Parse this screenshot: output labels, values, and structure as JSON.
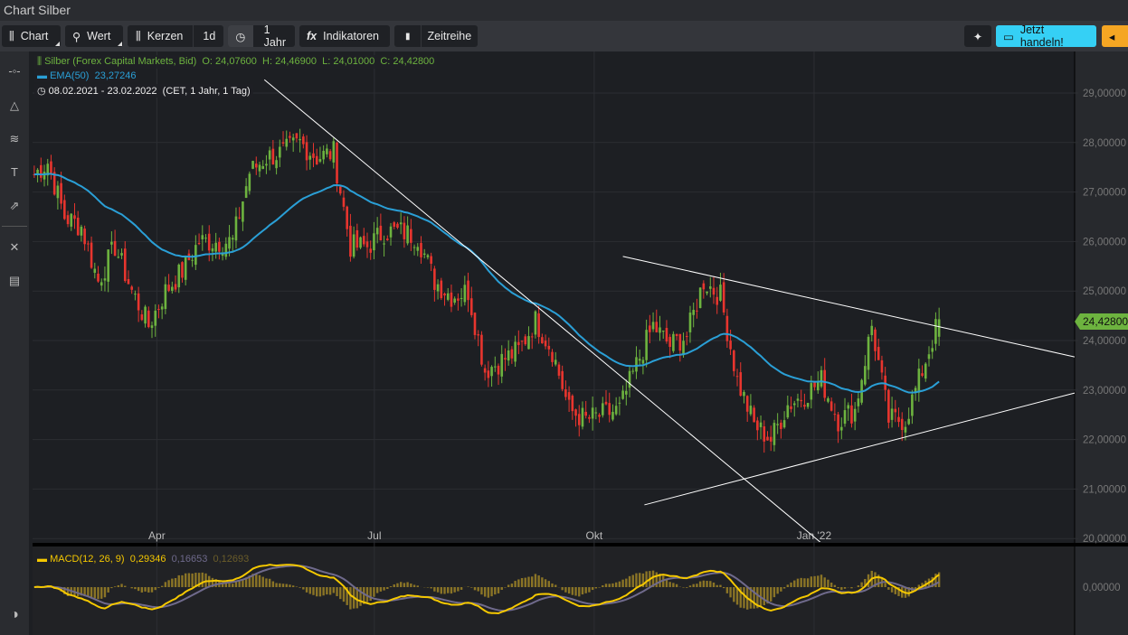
{
  "window": {
    "title": "Chart Silber"
  },
  "toolbar": {
    "chart": "Chart",
    "wert": "Wert",
    "kerzen": "Kerzen",
    "interval": "1d",
    "range": "1 Jahr",
    "indikatoren": "Indikatoren",
    "zeitreihe": "Zeitreihe",
    "trade": "Jetzt handeln!"
  },
  "icons": {
    "chart": "candlestick-icon",
    "wert": "search-icon",
    "range": "clock-icon",
    "indikatoren": "fx-icon",
    "zeitreihe": "bookmark-icon",
    "magic": "sparkle-icon",
    "trade": "money-icon",
    "collapse": "caret-left-icon"
  },
  "legend": {
    "instrument": "Silber (Forex Capital Markets, Bid)",
    "open": "O: 24,07600",
    "high": "H: 24,46900",
    "low": "L: 24,01000",
    "close": "C: 24,42800",
    "ema": "EMA(50)",
    "ema_value": "23,27246",
    "period": "08.02.2021 - 23.02.2022",
    "period_info": "(CET, 1 Jahr, 1 Tag)",
    "macd": "MACD(12, 26, 9)",
    "macd_value": "0,29346",
    "signal_value": "0,16653",
    "hist_value": "0,12693"
  },
  "price_badge": "24,42800",
  "colors": {
    "up": "#6db33f",
    "down": "#e8352e",
    "ema": "#2a9fd6",
    "macd": "#f5c800",
    "signal": "#6f6a8c",
    "hist": "#8a7426",
    "trade_button": "#35d0f5",
    "collapse_button": "#f5a623"
  },
  "chart_data": {
    "type": "candlestick",
    "start_date": "2021-02-08",
    "end_date": "2022-02-23",
    "y_ticks": [
      "29,00000",
      "28,00000",
      "27,00000",
      "26,00000",
      "25,00000",
      "24,00000",
      "23,00000",
      "22,00000",
      "21,00000",
      "20,00000"
    ],
    "ylim": [
      19.9,
      29.85
    ],
    "x_ticks": [
      {
        "label": "Apr",
        "date": "2021-04-01"
      },
      {
        "label": "Jul",
        "date": "2021-07-01"
      },
      {
        "label": "Okt",
        "date": "2021-10-01"
      },
      {
        "label": "Jan '22",
        "date": "2022-01-01"
      }
    ],
    "weekly_close": [
      27.3,
      27.6,
      26.5,
      26.3,
      25.2,
      25.9,
      25.0,
      24.3,
      25.0,
      25.4,
      26.0,
      26.0,
      26.0,
      27.4,
      27.7,
      27.8,
      28.0,
      27.7,
      27.8,
      25.9,
      25.9,
      26.2,
      26.2,
      26.1,
      25.2,
      24.9,
      25.0,
      23.4,
      23.6,
      23.8,
      24.4,
      23.8,
      22.6,
      22.4,
      22.5,
      22.6,
      23.5,
      24.3,
      23.9,
      24.1,
      25.2,
      24.9,
      23.2,
      22.3,
      22.0,
      22.7,
      22.9,
      23.2,
      22.4,
      22.6,
      24.3,
      22.4,
      22.4,
      23.4,
      24.43
    ],
    "trendlines": [
      {
        "from": [
          "2021-05-16",
          29.27
        ],
        "to": [
          "2022-01-05",
          19.87
        ]
      },
      {
        "from": [
          "2021-10-13",
          25.7
        ],
        "to": [
          "2022-04-20",
          23.67
        ]
      },
      {
        "from": [
          "2021-10-22",
          20.68
        ],
        "to": [
          "2022-04-20",
          22.94
        ]
      }
    ],
    "macd_y_tick": "0,00000",
    "grid": true
  }
}
